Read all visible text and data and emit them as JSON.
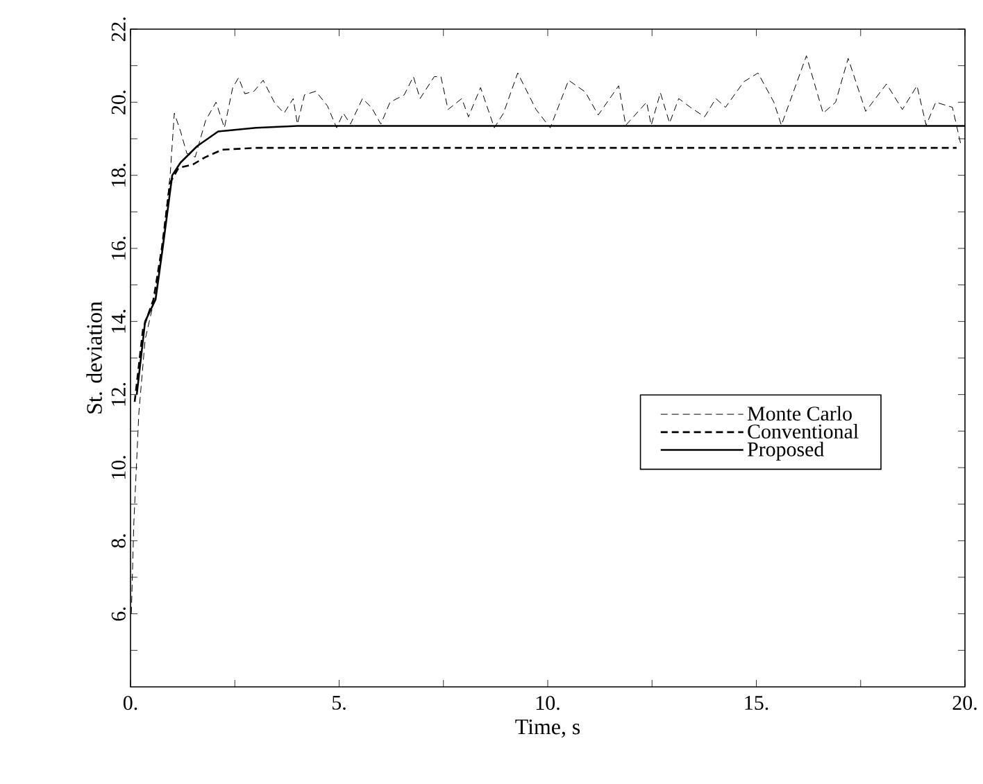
{
  "chart_data": {
    "type": "line",
    "xlabel": "Time, s",
    "ylabel": "St. deviation",
    "xlim": [
      0,
      20
    ],
    "ylim": [
      4,
      22
    ],
    "xticks": [
      {
        "value": 0,
        "label": "0."
      },
      {
        "value": 2.5,
        "label": null
      },
      {
        "value": 5,
        "label": "5."
      },
      {
        "value": 7.5,
        "label": null
      },
      {
        "value": 10,
        "label": "10."
      },
      {
        "value": 12.5,
        "label": null
      },
      {
        "value": 15,
        "label": "15."
      },
      {
        "value": 17.5,
        "label": null
      },
      {
        "value": 20,
        "label": "20."
      }
    ],
    "yticks": [
      {
        "value": 5,
        "label": null
      },
      {
        "value": 6,
        "label": "6."
      },
      {
        "value": 7,
        "label": null
      },
      {
        "value": 8,
        "label": "8."
      },
      {
        "value": 9,
        "label": null
      },
      {
        "value": 10,
        "label": "10."
      },
      {
        "value": 11,
        "label": null
      },
      {
        "value": 12,
        "label": "12."
      },
      {
        "value": 13,
        "label": null
      },
      {
        "value": 14,
        "label": "14."
      },
      {
        "value": 15,
        "label": null
      },
      {
        "value": 16,
        "label": "16."
      },
      {
        "value": 17,
        "label": null
      },
      {
        "value": 18,
        "label": "18."
      },
      {
        "value": 19,
        "label": null
      },
      {
        "value": 20,
        "label": "20."
      },
      {
        "value": 21,
        "label": null
      },
      {
        "value": 22,
        "label": "22."
      }
    ],
    "grid": false,
    "legend": "right",
    "marker": "none",
    "series": [
      {
        "name": "Monte Carlo",
        "color": "#000000",
        "line_style": "dashed",
        "x": [
          0.02,
          0.08,
          0.2,
          0.35,
          0.55,
          0.75,
          0.95,
          1.05,
          1.2,
          1.35,
          1.55,
          1.8,
          2.05,
          2.25,
          2.45,
          2.59,
          2.74,
          2.96,
          3.18,
          3.46,
          3.68,
          3.9,
          4.0,
          4.17,
          4.44,
          4.72,
          4.94,
          5.1,
          5.27,
          5.56,
          5.78,
          6.0,
          6.22,
          6.56,
          6.78,
          6.94,
          7.28,
          7.44,
          7.61,
          7.94,
          8.1,
          8.39,
          8.72,
          8.94,
          9.28,
          9.72,
          10.06,
          10.5,
          10.9,
          11.21,
          11.7,
          11.87,
          12.37,
          12.48,
          12.7,
          12.92,
          13.14,
          13.42,
          13.76,
          14.03,
          14.26,
          14.7,
          15.04,
          15.42,
          15.6,
          16.2,
          16.6,
          16.9,
          17.2,
          17.62,
          18.12,
          18.5,
          18.85,
          19.07,
          19.3,
          19.7,
          19.9
        ],
        "values": [
          6.0,
          8.5,
          11.5,
          13.5,
          14.5,
          16.0,
          18.0,
          19.7,
          19.2,
          18.6,
          18.5,
          19.5,
          20.0,
          19.3,
          20.4,
          20.67,
          20.23,
          20.3,
          20.6,
          19.97,
          19.7,
          20.1,
          19.4,
          20.2,
          20.3,
          19.9,
          19.3,
          19.7,
          19.4,
          20.1,
          19.85,
          19.4,
          20.0,
          20.2,
          20.7,
          20.1,
          20.7,
          20.7,
          19.8,
          20.1,
          19.6,
          20.4,
          19.3,
          19.7,
          20.8,
          19.8,
          19.3,
          20.6,
          20.28,
          19.65,
          20.45,
          19.37,
          20.0,
          19.37,
          20.26,
          19.43,
          20.1,
          19.86,
          19.6,
          20.1,
          19.86,
          20.56,
          20.8,
          20.0,
          19.37,
          21.27,
          19.7,
          20.0,
          21.2,
          19.75,
          20.5,
          19.8,
          20.45,
          19.37,
          20.0,
          19.86,
          18.85
        ]
      },
      {
        "name": "Conventional",
        "color": "#000000",
        "line_style": "dashed",
        "x": [
          0.1,
          0.3,
          0.55,
          0.75,
          0.95,
          1.15,
          1.5,
          1.8,
          2.2,
          3.0,
          19.8
        ],
        "values": [
          11.8,
          13.8,
          14.6,
          16.0,
          17.8,
          18.2,
          18.3,
          18.5,
          18.7,
          18.75,
          18.75
        ]
      },
      {
        "name": "Proposed",
        "color": "#000000",
        "line_style": "solid",
        "x": [
          0.15,
          0.35,
          0.6,
          0.77,
          1.0,
          1.2,
          1.6,
          2.1,
          3.0,
          4.0,
          20.0
        ],
        "values": [
          12.0,
          14.0,
          14.6,
          16.0,
          18.0,
          18.35,
          18.8,
          19.2,
          19.3,
          19.35,
          19.35
        ]
      }
    ]
  }
}
